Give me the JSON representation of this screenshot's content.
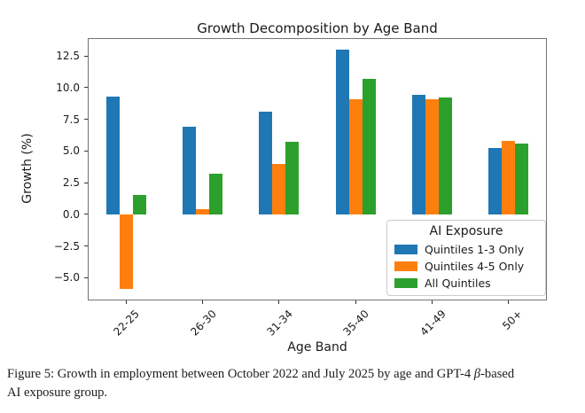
{
  "figure": {
    "caption": {
      "part1": "Figure 5: Growth in employment between October 2022 and July 2025 by age and GPT-4 ",
      "beta": "β",
      "part2": "-based",
      "line2": "AI exposure group."
    }
  },
  "chart_data": {
    "type": "bar",
    "title": "Growth Decomposition by Age Band",
    "xlabel": "Age Band",
    "ylabel": "Growth (%)",
    "categories": [
      "22-25",
      "26-30",
      "31-34",
      "35-40",
      "41-49",
      "50+"
    ],
    "series": [
      {
        "name": "Quintiles 1-3 Only",
        "color": "#1f77b4",
        "values": [
          9.3,
          6.9,
          8.1,
          13.0,
          9.4,
          5.2
        ]
      },
      {
        "name": "Quintiles 4-5 Only",
        "color": "#ff7f0e",
        "values": [
          -5.9,
          0.4,
          4.0,
          9.1,
          9.1,
          5.8
        ]
      },
      {
        "name": "All Quintiles",
        "color": "#2ca02c",
        "values": [
          1.5,
          3.2,
          5.7,
          10.7,
          9.2,
          5.6
        ]
      }
    ],
    "ylim": [
      -6.8,
      13.9
    ],
    "yticks": [
      -5.0,
      -2.5,
      0.0,
      2.5,
      5.0,
      7.5,
      10.0,
      12.5
    ],
    "ytick_labels": [
      "−5.0",
      "−2.5",
      "0.0",
      "2.5",
      "5.0",
      "7.5",
      "10.0",
      "12.5"
    ],
    "legend": {
      "title": "AI Exposure",
      "position": "lower right"
    },
    "grid": false,
    "bar_edge": "none"
  }
}
